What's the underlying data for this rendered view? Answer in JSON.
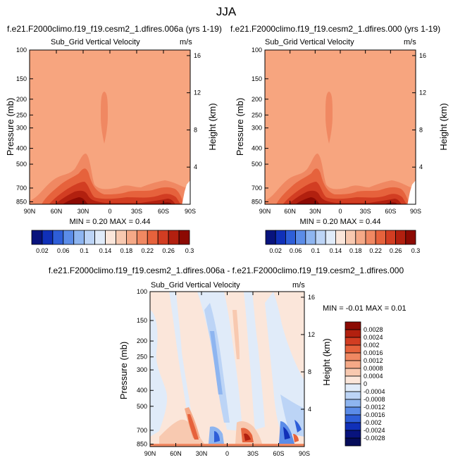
{
  "page_title": "JJA",
  "colors": {
    "field_base": "#F7A57F",
    "diff_base": "#FBE6DA"
  },
  "chart_data": [
    {
      "type": "heatmap",
      "title": "f.e21.F2000climo.f19_f19.cesm2_1.dfires.006a (yrs 1-19)",
      "subtitle": "Sub_Grid Vertical Velocity",
      "units": "m/s",
      "ylabel": "Pressure (mb)",
      "y2label": "Height (km)",
      "xticks": [
        "90N",
        "60N",
        "30N",
        "0",
        "30S",
        "60S",
        "90S"
      ],
      "yticks": [
        "100",
        "150",
        "200",
        "250",
        "300",
        "400",
        "500",
        "700",
        "850"
      ],
      "y2ticks": [
        "16",
        "12",
        "8",
        "4"
      ],
      "stats": "MIN =  0.20  MAX =  0.44",
      "colorbar_labels": [
        "0.02",
        "0.06",
        "0.1",
        "0.14",
        "0.18",
        "0.22",
        "0.26",
        "0.3"
      ],
      "colorbar_colors": [
        "#08137D",
        "#1030B8",
        "#2E5ED8",
        "#5B8CE8",
        "#8EB5F0",
        "#BCD4F6",
        "#E0EBF9",
        "#FBE6DA",
        "#F8C9B0",
        "#F5A987",
        "#F08862",
        "#E6623C",
        "#D23D22",
        "#B2200F",
        "#8C0A03"
      ]
    },
    {
      "type": "heatmap",
      "title": "f.e21.F2000climo.f19_f19.cesm2_1.dfires.000 (yrs 1-19)",
      "subtitle": "Sub_Grid Vertical Velocity",
      "units": "m/s",
      "ylabel": "Pressure (mb)",
      "y2label": "Height (km)",
      "xticks": [
        "90N",
        "60N",
        "30N",
        "0",
        "30S",
        "60S",
        "90S"
      ],
      "yticks": [
        "100",
        "150",
        "200",
        "250",
        "300",
        "400",
        "500",
        "700",
        "850"
      ],
      "y2ticks": [
        "16",
        "12",
        "8",
        "4"
      ],
      "stats": "MIN =  0.20  MAX =  0.44",
      "colorbar_labels": [
        "0.02",
        "0.06",
        "0.1",
        "0.14",
        "0.18",
        "0.22",
        "0.26",
        "0.3"
      ],
      "colorbar_colors": [
        "#08137D",
        "#1030B8",
        "#2E5ED8",
        "#5B8CE8",
        "#8EB5F0",
        "#BCD4F6",
        "#E0EBF9",
        "#FBE6DA",
        "#F8C9B0",
        "#F5A987",
        "#F08862",
        "#E6623C",
        "#D23D22",
        "#B2200F",
        "#8C0A03"
      ]
    },
    {
      "type": "heatmap",
      "title": "f.e21.F2000climo.f19_f19.cesm2_1.dfires.006a - f.e21.F2000climo.f19_f19.cesm2_1.dfires.000",
      "subtitle": "Sub_Grid Vertical Velocity",
      "units": "m/s",
      "ylabel": "Pressure (mb)",
      "y2label": "Height (km)",
      "xticks": [
        "90N",
        "60N",
        "30N",
        "0",
        "30S",
        "60S",
        "90S"
      ],
      "yticks": [
        "100",
        "150",
        "200",
        "250",
        "300",
        "400",
        "500",
        "700",
        "850"
      ],
      "y2ticks": [
        "16",
        "12",
        "8",
        "4"
      ],
      "stats": "MIN = -0.01  MAX =  0.01",
      "colorbar_labels": [
        "0.0028",
        "0.0024",
        "0.002",
        "0.0016",
        "0.0012",
        "0.0008",
        "0.0004",
        "0",
        "-0.0004",
        "-0.0008",
        "-0.0012",
        "-0.0016",
        "-0.002",
        "-0.0024",
        "-0.0028"
      ],
      "colorbar_colors": [
        "#8C0A03",
        "#B2200F",
        "#D23D22",
        "#E6623C",
        "#F08862",
        "#F5A987",
        "#F8C9B0",
        "#FBE6DA",
        "#E0EBF9",
        "#BCD4F6",
        "#8EB5F0",
        "#5B8CE8",
        "#2E5ED8",
        "#1030B8",
        "#08137D",
        "#050C5A"
      ]
    }
  ]
}
